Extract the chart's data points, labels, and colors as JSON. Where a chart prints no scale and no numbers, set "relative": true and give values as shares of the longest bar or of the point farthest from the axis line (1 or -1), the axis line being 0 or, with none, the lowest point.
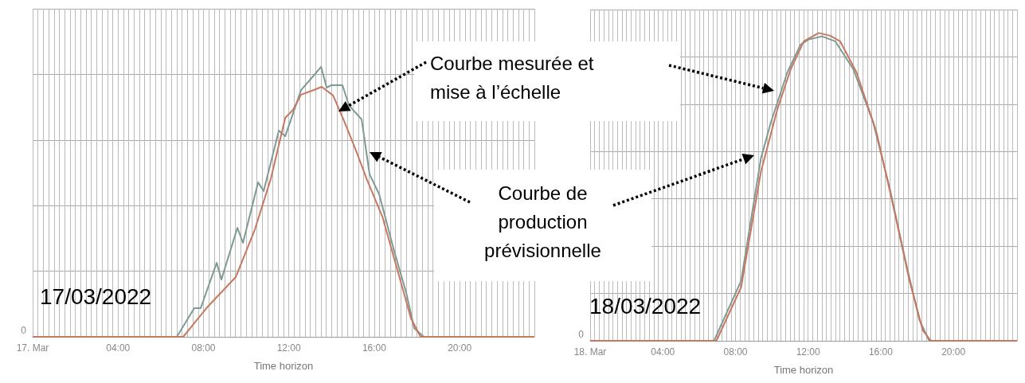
{
  "chart_data": [
    {
      "type": "line",
      "relative": true,
      "xlabel": "Time horizon",
      "xlim": [
        0,
        23.5
      ],
      "xticks": [
        {
          "value": 0,
          "label": "17. Mar"
        },
        {
          "value": 4,
          "label": "04:00"
        },
        {
          "value": 8,
          "label": "08:00"
        },
        {
          "value": 12,
          "label": "12:00"
        },
        {
          "value": 16,
          "label": "16:00"
        },
        {
          "value": 20,
          "label": "20:00"
        }
      ],
      "grid": true,
      "marker": "none",
      "line_style": "solid",
      "annotations": [
        "0",
        "17/03/2022",
        "Courbe mesurée et mise à l’échelle",
        "Courbe de production prévisionnelle"
      ],
      "series": [
        {
          "color": "#7f9a95",
          "x": [
            0,
            6.75,
            7.57,
            7.87,
            8.62,
            8.84,
            9.59,
            9.85,
            10.56,
            10.82,
            11.53,
            11.83,
            12.57,
            13.17,
            13.51,
            13.77,
            14.0,
            14.51,
            14.81,
            15.41,
            15.78,
            16.23,
            16.9,
            17.5,
            17.87,
            18.32,
            23.5
          ],
          "values": [
            0,
            0,
            0.106,
            0.106,
            0.274,
            0.212,
            0.404,
            0.348,
            0.572,
            0.54,
            0.764,
            0.743,
            0.914,
            0.968,
            1.0,
            0.923,
            0.932,
            0.932,
            0.858,
            0.805,
            0.602,
            0.528,
            0.327,
            0.162,
            0.032,
            0,
            0
          ]
        },
        {
          "color": "#c8785f",
          "x": [
            0,
            7.05,
            8.17,
            9.51,
            10.41,
            11.16,
            11.83,
            12.2,
            12.57,
            13.1,
            13.54,
            14.07,
            14.59,
            15.19,
            15.63,
            16.38,
            17.05,
            17.72,
            18.17,
            23.5
          ],
          "values": [
            0,
            0,
            0.109,
            0.221,
            0.398,
            0.587,
            0.811,
            0.841,
            0.897,
            0.912,
            0.926,
            0.894,
            0.799,
            0.681,
            0.587,
            0.445,
            0.257,
            0.068,
            0,
            0
          ]
        }
      ]
    },
    {
      "type": "line",
      "relative": true,
      "xlabel": "Time horizon",
      "xlim": [
        0,
        23.5
      ],
      "xticks": [
        {
          "value": 0,
          "label": "18. Mar"
        },
        {
          "value": 4,
          "label": "04:00"
        },
        {
          "value": 8,
          "label": "08:00"
        },
        {
          "value": 12,
          "label": "12:00"
        },
        {
          "value": 16,
          "label": "16:00"
        },
        {
          "value": 20,
          "label": "20:00"
        }
      ],
      "grid": true,
      "marker": "none",
      "line_style": "solid",
      "annotations": [
        "0",
        "18/03/2022"
      ],
      "series": [
        {
          "color": "#7f9a95",
          "x": [
            0,
            6.82,
            8.31,
            9.4,
            9.95,
            10.85,
            11.58,
            12.04,
            12.76,
            13.49,
            14.49,
            15.58,
            16.49,
            17.4,
            18.13,
            18.67,
            23.5
          ],
          "values": [
            0,
            0,
            0.195,
            0.592,
            0.71,
            0.871,
            0.962,
            0.979,
            0.989,
            0.973,
            0.882,
            0.71,
            0.496,
            0.249,
            0.067,
            0,
            0
          ]
        },
        {
          "color": "#c8785f",
          "x": [
            0,
            6.95,
            8.31,
            9.4,
            10.31,
            11.04,
            11.76,
            12.58,
            13.22,
            13.76,
            14.67,
            15.76,
            16.67,
            17.58,
            18.31,
            18.76,
            23.5
          ],
          "values": [
            0,
            0,
            0.174,
            0.549,
            0.753,
            0.882,
            0.973,
            1.0,
            0.991,
            0.973,
            0.871,
            0.678,
            0.442,
            0.195,
            0.034,
            0,
            0
          ]
        }
      ]
    }
  ]
}
